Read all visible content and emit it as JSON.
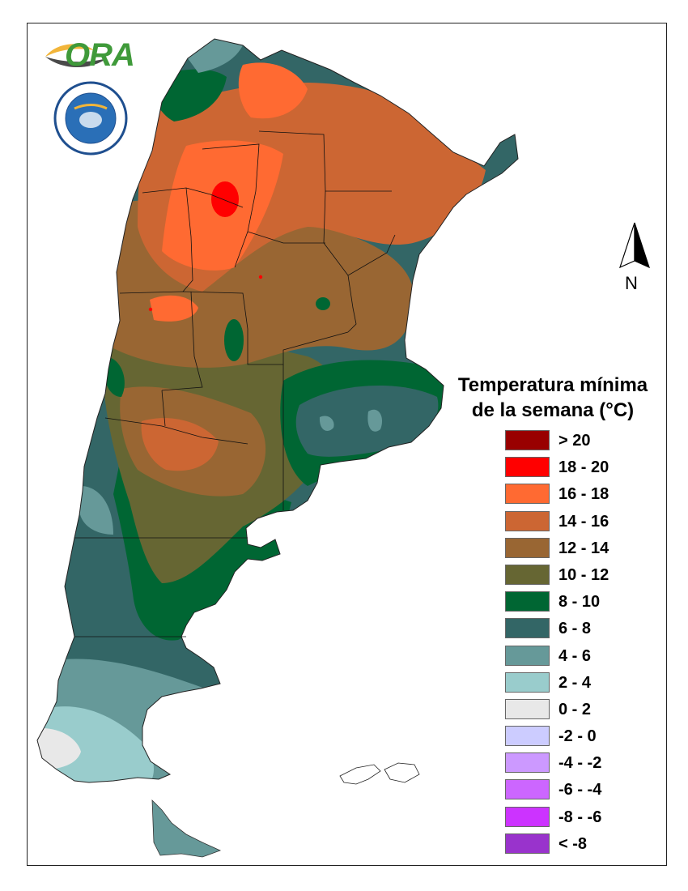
{
  "logo": {
    "text": "ORA"
  },
  "north_arrow": {
    "label": "N"
  },
  "legend": {
    "title_line1": "Temperatura mínima",
    "title_line2": "de la semana (°C)",
    "items": [
      {
        "label": "> 20",
        "color": "#990000"
      },
      {
        "label": "18 - 20",
        "color": "#ff0000"
      },
      {
        "label": "16 - 18",
        "color": "#ff6a32"
      },
      {
        "label": "14 - 16",
        "color": "#cc6633"
      },
      {
        "label": "12 - 14",
        "color": "#996633"
      },
      {
        "label": "10 - 12",
        "color": "#666633"
      },
      {
        "label": "8 - 10",
        "color": "#006633"
      },
      {
        "label": "6 - 8",
        "color": "#336666"
      },
      {
        "label": "4 - 6",
        "color": "#669999"
      },
      {
        "label": "2 - 4",
        "color": "#99cccc"
      },
      {
        "label": "0 - 2",
        "color": "#e8e8e8"
      },
      {
        "label": "-2 - 0",
        "color": "#ccccff"
      },
      {
        "label": "-4 - -2",
        "color": "#cc99ff"
      },
      {
        "label": "-6 - -4",
        "color": "#cc66ff"
      },
      {
        "label": "-8 - -6",
        "color": "#cc33ff"
      },
      {
        "label": "< -8",
        "color": "#9933cc"
      }
    ]
  }
}
